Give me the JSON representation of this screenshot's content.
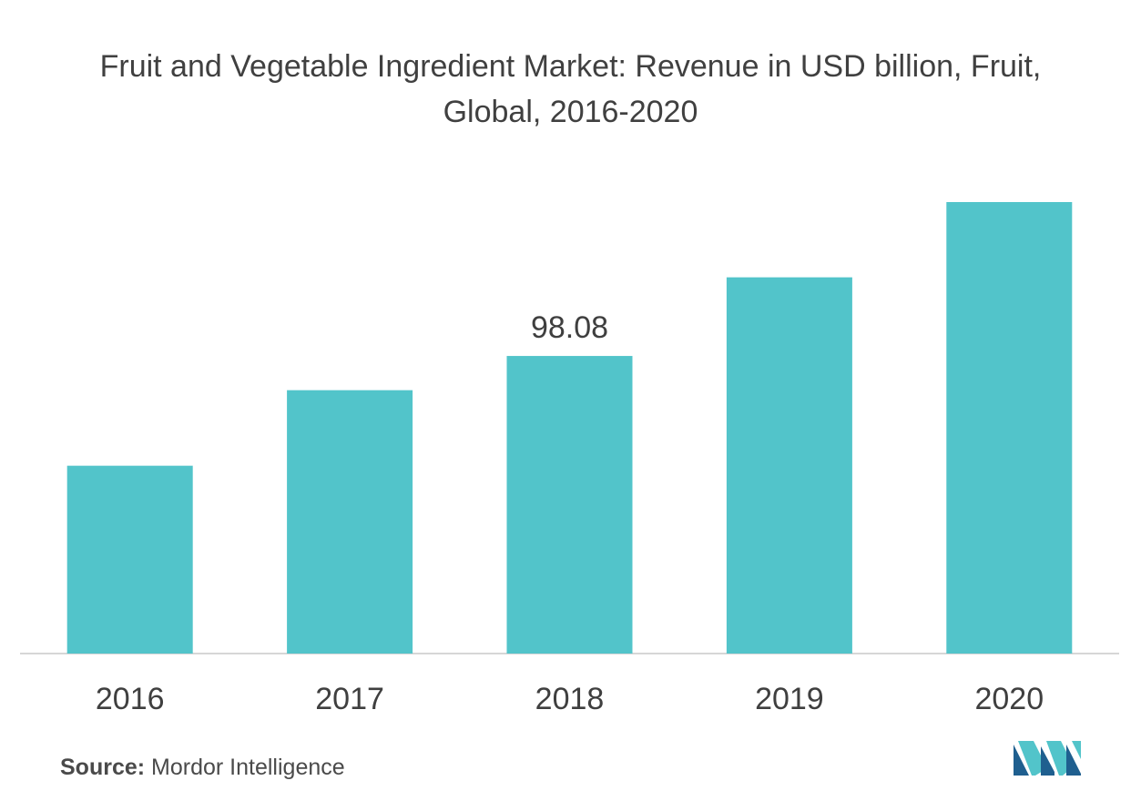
{
  "chart_data": {
    "type": "bar",
    "title": "Fruit and Vegetable Ingredient Market: Revenue in USD billion, Fruit, Global, 2016-2020",
    "categories": [
      "2016",
      "2017",
      "2018",
      "2019",
      "2020"
    ],
    "values": [
      61.9,
      86.8,
      98.08,
      124.0,
      148.8
    ],
    "data_labels": [
      "",
      "",
      "98.08",
      "",
      ""
    ],
    "xlabel": "",
    "ylabel": "",
    "ylim": [
      0,
      150
    ],
    "grid": false,
    "legend": "none",
    "bar_color": "#52c4ca"
  },
  "source": {
    "label": "Source:",
    "text": "Mordor Intelligence"
  },
  "logo": {
    "icon": "mordor-intelligence-logo-icon",
    "colors": [
      "#1f5f8f",
      "#52c4ca"
    ]
  }
}
